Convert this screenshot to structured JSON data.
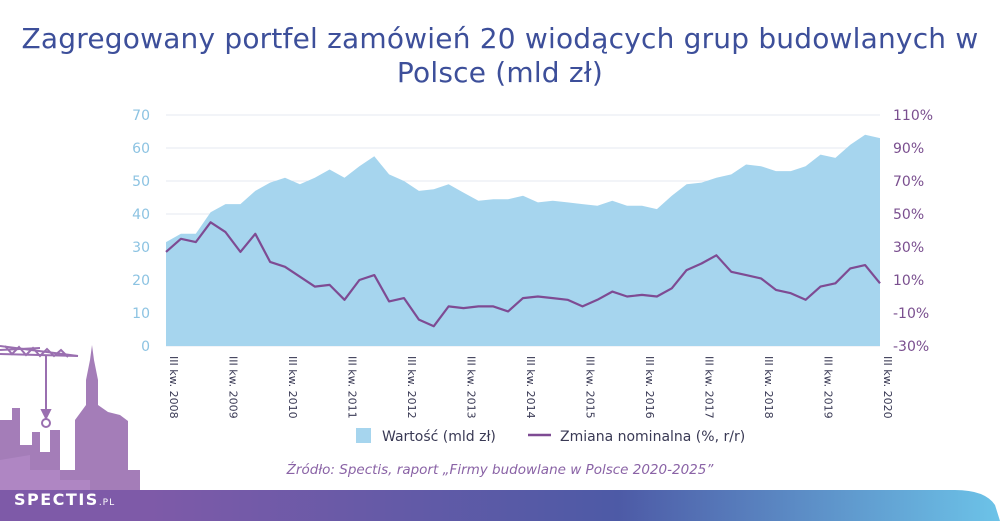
{
  "title": "Zagregowany portfel zamówień 20 wiodących grup budowlanych w Polsce (mld zł)",
  "source": "Źródło: Spectis, raport „Firmy budowlane w Polsce 2020-2025”",
  "logo": {
    "name": "SPECTIS",
    "suffix": ".PL"
  },
  "colors": {
    "area": "#a6d5ee",
    "line": "#7e4b93",
    "left_axis": "#8cc3e2",
    "right_axis": "#7a4f8f",
    "title": "#3d4f9a",
    "source": "#8a63a6",
    "skyline": "#9a6fb0",
    "footer_start": "#7e5aa8",
    "footer_end": "#6cc3e8"
  },
  "chart_data": {
    "type": "area",
    "title": "Zagregowany portfel zamówień 20 wiodących grup budowlanych w Polsce (mld zł)",
    "x": [
      "III kw. 2008",
      "IV kw. 2008",
      "I kw. 2009",
      "II kw. 2009",
      "III kw. 2009",
      "IV kw. 2009",
      "I kw. 2010",
      "II kw. 2010",
      "III kw. 2010",
      "IV kw. 2010",
      "I kw. 2011",
      "II kw. 2011",
      "III kw. 2011",
      "IV kw. 2011",
      "I kw. 2012",
      "II kw. 2012",
      "III kw. 2012",
      "IV kw. 2012",
      "I kw. 2013",
      "II kw. 2013",
      "III kw. 2013",
      "IV kw. 2013",
      "I kw. 2014",
      "II kw. 2014",
      "III kw. 2014",
      "IV kw. 2014",
      "I kw. 2015",
      "II kw. 2015",
      "III kw. 2015",
      "IV kw. 2015",
      "I kw. 2016",
      "II kw. 2016",
      "III kw. 2016",
      "IV kw. 2016",
      "I kw. 2017",
      "II kw. 2017",
      "III kw. 2017",
      "IV kw. 2017",
      "I kw. 2018",
      "II kw. 2018",
      "III kw. 2018",
      "IV kw. 2018",
      "I kw. 2019",
      "II kw. 2019",
      "III kw. 2019",
      "IV kw. 2019",
      "I kw. 2020",
      "II kw. 2020",
      "III kw. 2020"
    ],
    "x_tick_labels": [
      "III kw. 2008",
      "III kw. 2009",
      "III kw. 2010",
      "III kw. 2011",
      "III kw. 2012",
      "III kw. 2013",
      "III kw. 2014",
      "III kw. 2015",
      "III kw. 2016",
      "III kw. 2017",
      "III kw. 2018",
      "III kw. 2019",
      "III kw. 2020"
    ],
    "x_tick_indices": [
      0,
      4,
      8,
      12,
      16,
      20,
      24,
      28,
      32,
      36,
      40,
      44,
      48
    ],
    "series": [
      {
        "name": "Wartość (mld zł)",
        "type": "area",
        "axis": "left",
        "values": [
          31.5,
          34,
          34,
          40.5,
          43,
          43,
          47,
          49.5,
          51,
          49,
          51,
          53.5,
          51,
          54.5,
          57.5,
          52,
          50,
          47,
          47.5,
          49,
          46.5,
          44,
          44.5,
          44.5,
          45.5,
          43.5,
          44,
          43.5,
          43,
          42.5,
          44,
          42.5,
          42.5,
          41.5,
          45.5,
          49,
          49.5,
          51,
          52,
          55,
          54.5,
          53,
          53,
          54.5,
          58,
          57,
          61,
          64,
          63
        ]
      },
      {
        "name": "Zmiana nominalna (%, r/r)",
        "type": "line",
        "axis": "right",
        "values": [
          27,
          35,
          33,
          45,
          39,
          27,
          38,
          21,
          18,
          12,
          6,
          7,
          -2,
          10,
          13,
          -3,
          -1,
          -14,
          -18,
          -6,
          -7,
          -6,
          -6,
          -9,
          -1,
          0,
          -1,
          -2,
          -6,
          -2,
          3,
          0,
          1,
          0,
          5,
          16,
          20,
          25,
          15,
          13,
          11,
          4,
          2,
          -2,
          6,
          8,
          17,
          19,
          8
        ]
      }
    ],
    "y_left": {
      "lim": [
        0,
        70
      ],
      "ticks": [
        0,
        10,
        20,
        30,
        40,
        50,
        60,
        70
      ]
    },
    "y_right": {
      "lim": [
        -30,
        110
      ],
      "ticks": [
        "-30%",
        "-10%",
        "10%",
        "30%",
        "50%",
        "70%",
        "90%",
        "110%"
      ]
    },
    "grid": true,
    "legend_position": "bottom",
    "xlabel": "",
    "ylabel": ""
  }
}
